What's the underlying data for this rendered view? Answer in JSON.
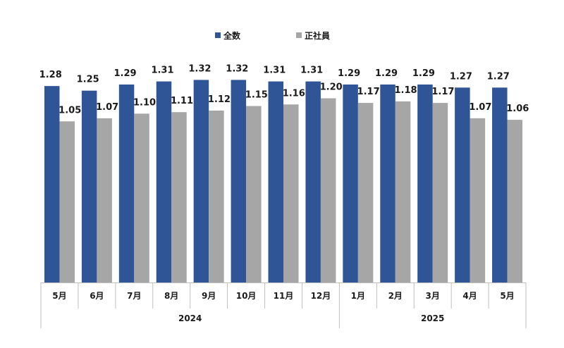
{
  "chart_data": {
    "type": "bar",
    "categories": [
      "5月",
      "6月",
      "7月",
      "8月",
      "9月",
      "10月",
      "11月",
      "12月",
      "1月",
      "2月",
      "3月",
      "4月",
      "5月"
    ],
    "groups": [
      {
        "label": "2024",
        "count": 8
      },
      {
        "label": "2025",
        "count": 5
      }
    ],
    "series": [
      {
        "name": "全数",
        "color": "#2f5597",
        "values": [
          1.28,
          1.25,
          1.29,
          1.31,
          1.32,
          1.32,
          1.31,
          1.31,
          1.29,
          1.29,
          1.29,
          1.27,
          1.27
        ],
        "labels": [
          "1.28",
          "1.25",
          "1.29",
          "1.31",
          "1.32",
          "1.32",
          "1.31",
          "1.31",
          "1.29",
          "1.29",
          "1.29",
          "1.27",
          "1.27"
        ]
      },
      {
        "name": "正社員",
        "color": "#a6a6a6",
        "values": [
          1.05,
          1.07,
          1.1,
          1.11,
          1.12,
          1.15,
          1.16,
          1.2,
          1.17,
          1.18,
          1.17,
          1.07,
          1.06
        ],
        "labels": [
          "1.05",
          "1.07",
          "1.10",
          "1.11",
          "1.12",
          "1.15",
          "1.16",
          "1.20",
          "1.17",
          "1.18",
          "1.17",
          "1.07",
          "1.06"
        ]
      }
    ],
    "ylim": [
      0,
      1.4
    ],
    "legend_position": "top-center",
    "grid": false
  }
}
